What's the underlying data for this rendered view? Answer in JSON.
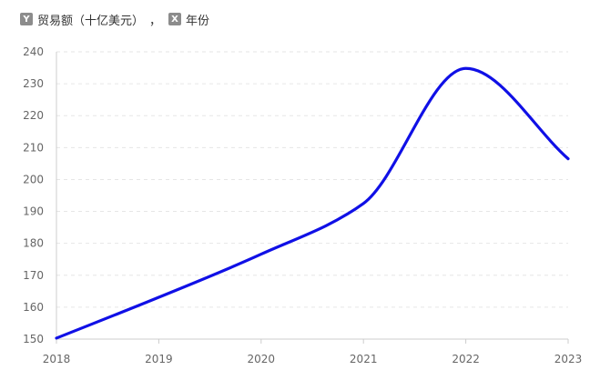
{
  "legend": {
    "y_badge": "Y",
    "y_label": "贸易额（十亿美元）",
    "separator": "，",
    "x_badge": "X",
    "x_label": "年份"
  },
  "chart_data": {
    "type": "line",
    "x": [
      "2018",
      "2019",
      "2020",
      "2021",
      "2022",
      "2023"
    ],
    "series": [
      {
        "values": [
          150.3,
          163.1,
          176.6,
          192.5,
          234.8,
          206.5
        ],
        "color": "#1010e6"
      }
    ],
    "ylim": [
      150,
      240
    ],
    "yticks": [
      150,
      160,
      170,
      180,
      190,
      200,
      210,
      220,
      230,
      240
    ],
    "xlabel": "年份",
    "ylabel": "贸易额（十亿美元）",
    "grid": true,
    "colors": {
      "grid": "#e6e6e6",
      "axis": "#cccccc",
      "tick_text": "#666666"
    }
  }
}
